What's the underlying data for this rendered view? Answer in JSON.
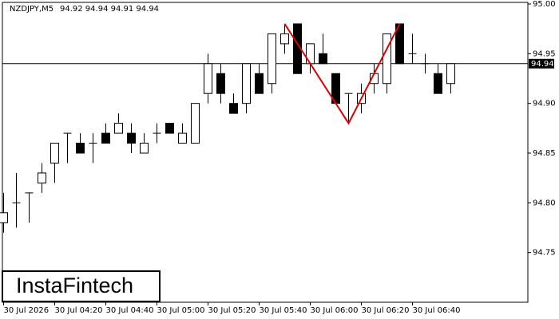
{
  "chart_data": {
    "type": "candlestick",
    "title": "NZDJPY,M5",
    "header_values": "94.92 94.94 94.91 94.94",
    "logo": "InstaFintech",
    "categories": [
      "30 Jul 2026",
      null,
      null,
      null,
      "30 Jul 04:20",
      null,
      null,
      null,
      "30 Jul 04:40",
      null,
      null,
      null,
      "30 Jul 05:00",
      null,
      null,
      null,
      "30 Jul 05:20",
      null,
      null,
      null,
      "30 Jul 05:40",
      null,
      null,
      null,
      "30 Jul 06:00",
      null,
      null,
      null,
      "30 Jul 06:20",
      null,
      null,
      null,
      "30 Jul 06:40",
      null,
      null,
      null
    ],
    "open": [
      94.78,
      94.8,
      94.81,
      94.82,
      94.84,
      94.87,
      94.86,
      94.86,
      94.87,
      94.87,
      94.87,
      94.85,
      94.87,
      94.88,
      94.86,
      94.86,
      94.91,
      94.93,
      94.9,
      94.9,
      94.93,
      94.92,
      94.96,
      94.98,
      94.94,
      94.95,
      94.93,
      94.91,
      94.9,
      94.92,
      94.92,
      94.98,
      94.95,
      94.94,
      94.93,
      94.92
    ],
    "high": [
      94.81,
      94.83,
      94.81,
      94.84,
      94.86,
      94.87,
      94.87,
      94.87,
      94.88,
      94.89,
      94.88,
      94.87,
      94.88,
      94.88,
      94.88,
      94.9,
      94.95,
      94.94,
      94.91,
      94.94,
      94.94,
      94.97,
      94.98,
      94.98,
      94.96,
      94.97,
      94.93,
      94.91,
      94.92,
      94.94,
      94.97,
      94.98,
      94.97,
      94.95,
      94.94,
      94.94
    ],
    "low": [
      94.77,
      94.775,
      94.78,
      94.81,
      94.82,
      94.84,
      94.85,
      94.84,
      94.86,
      94.87,
      94.85,
      94.85,
      94.86,
      94.87,
      94.86,
      94.86,
      94.9,
      94.9,
      94.89,
      94.89,
      94.91,
      94.91,
      94.95,
      94.93,
      94.93,
      94.94,
      94.9,
      94.88,
      94.89,
      94.91,
      94.91,
      94.94,
      94.94,
      94.93,
      94.91,
      94.91
    ],
    "close": [
      94.79,
      94.8,
      94.81,
      94.83,
      94.86,
      94.87,
      94.85,
      94.86,
      94.86,
      94.88,
      94.86,
      94.86,
      94.87,
      94.87,
      94.87,
      94.9,
      94.94,
      94.91,
      94.89,
      94.94,
      94.91,
      94.97,
      94.97,
      94.93,
      94.96,
      94.94,
      94.9,
      94.91,
      94.91,
      94.93,
      94.97,
      94.94,
      94.95,
      94.94,
      94.91,
      94.94
    ],
    "up_color": "#ffffff",
    "down_color": "#000000",
    "current_price": 94.94,
    "pattern": {
      "color": "#e00000",
      "points": [
        {
          "candle": 22,
          "price": 94.98
        },
        {
          "candle": 27,
          "price": 94.88
        },
        {
          "candle": 31,
          "price": 94.98
        }
      ]
    },
    "ylim": [
      94.7,
      95.0
    ],
    "yticks": [
      94.75,
      {
        "value": 94.8,
        "label": "94.80"
      },
      94.85,
      {
        "value": 94.9,
        "label": "94.90"
      },
      94.95,
      {
        "value": 95.0,
        "label": "95.00"
      }
    ]
  }
}
